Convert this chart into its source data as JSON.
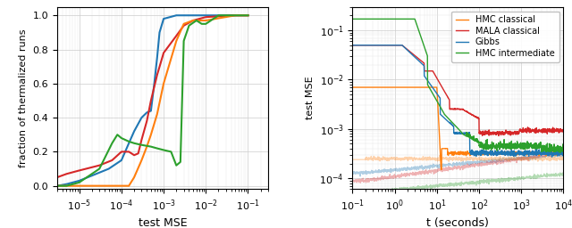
{
  "left_plot": {
    "xlabel": "test MSE",
    "ylabel": "fraction of thermalized runs",
    "xlim": [
      3e-06,
      0.3
    ],
    "ylim": [
      -0.02,
      1.05
    ],
    "colors": {
      "hmc_classical": "#ff7f0e",
      "mala_classical": "#d62728",
      "gibbs": "#1f77b4",
      "hmc_intermediate": "#2ca02c"
    }
  },
  "right_plot": {
    "xlabel": "t (seconds)",
    "ylabel": "test MSE",
    "xlim": [
      0.1,
      10000
    ],
    "ylim": [
      6e-05,
      0.3
    ],
    "colors": {
      "hmc_classical": "#ff7f0e",
      "mala_classical": "#d62728",
      "gibbs": "#1f77b4",
      "hmc_intermediate": "#2ca02c"
    },
    "legend": [
      "HMC classical",
      "MALA classical",
      "Gibbs",
      "HMC intermediate"
    ]
  }
}
